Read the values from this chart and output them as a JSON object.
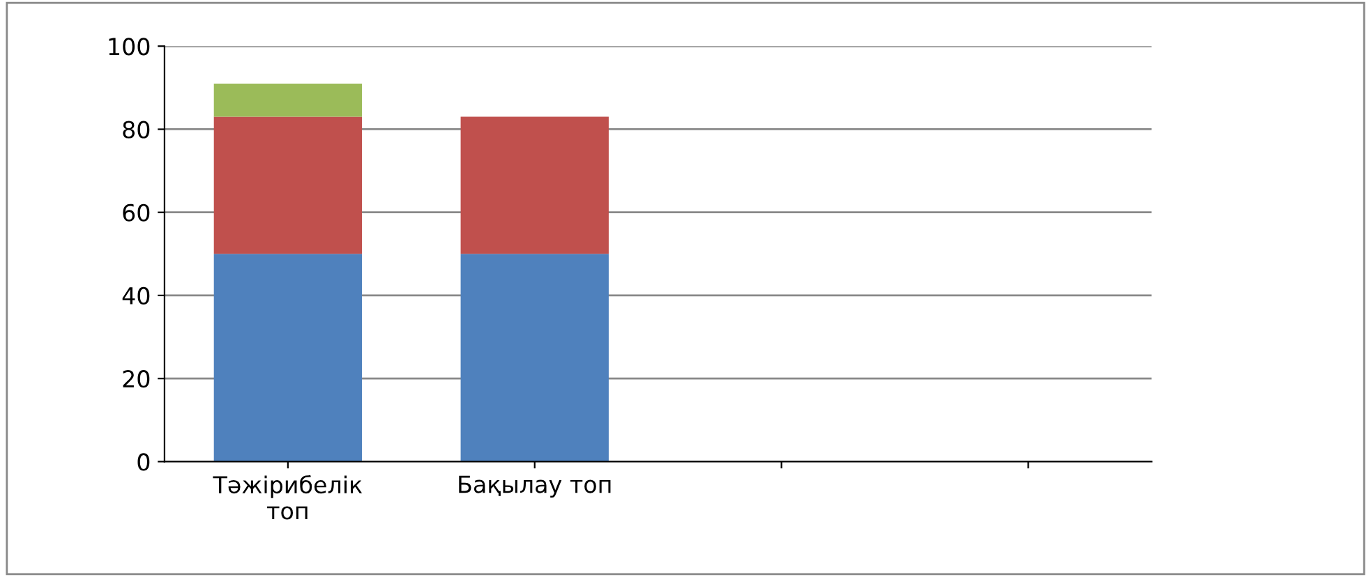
{
  "chart_data": {
    "type": "bar",
    "stacked": true,
    "categories": [
      "Тәжірибелік топ",
      "Бақылау топ",
      null,
      null
    ],
    "series": [
      {
        "color": "#4f81bd",
        "values": [
          50,
          50,
          null,
          null
        ]
      },
      {
        "color": "#c0504d",
        "values": [
          33,
          33,
          null,
          null
        ]
      },
      {
        "color": "#9bbb59",
        "values": [
          8,
          0,
          null,
          null
        ]
      }
    ],
    "ylim": [
      0,
      100
    ],
    "yticks": [
      0,
      20,
      40,
      60,
      80,
      100
    ],
    "grid": "y",
    "legend": false
  }
}
